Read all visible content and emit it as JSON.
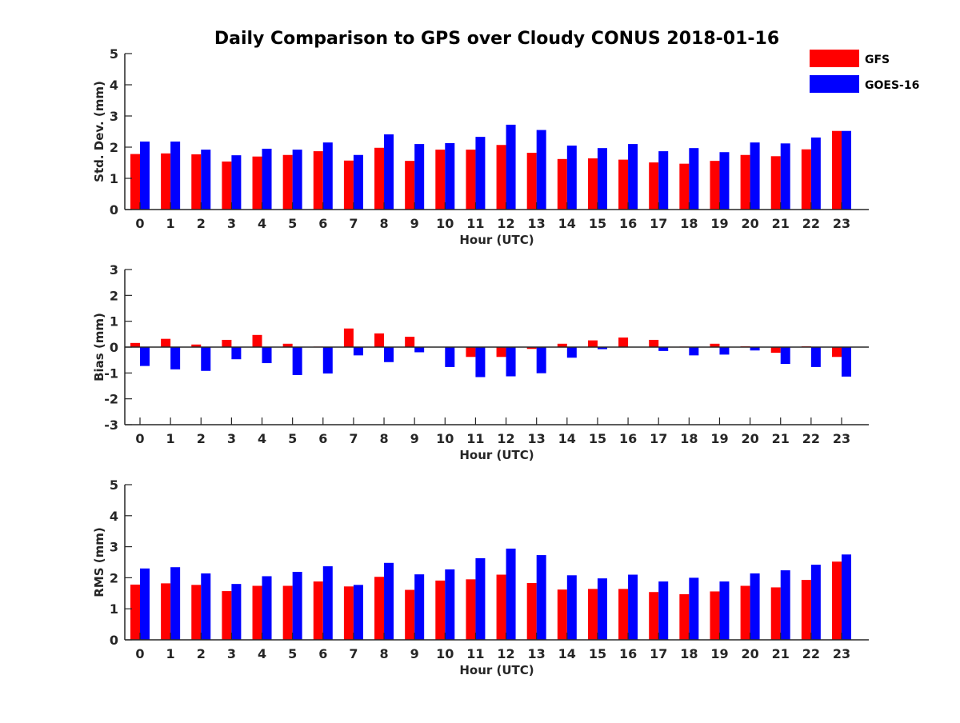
{
  "chart_data": {
    "type": "bar",
    "title": "Daily Comparison to GPS over Cloudy CONUS 2018-01-16",
    "categories": [
      "0",
      "1",
      "2",
      "3",
      "4",
      "5",
      "6",
      "7",
      "8",
      "9",
      "10",
      "11",
      "12",
      "13",
      "14",
      "15",
      "16",
      "17",
      "18",
      "19",
      "20",
      "21",
      "22",
      "23"
    ],
    "legend": {
      "placement": "top-right",
      "entries": [
        {
          "name": "GFS",
          "color": "#ff0000"
        },
        {
          "name": "GOES-16",
          "color": "#0000ff"
        }
      ]
    },
    "panels": [
      {
        "id": "stddev",
        "xlabel": "Hour (UTC)",
        "ylabel": "Std. Dev. (mm)",
        "ylim": [
          0,
          5
        ],
        "yticks": [
          "0",
          "1",
          "2",
          "3",
          "4",
          "5"
        ],
        "series": [
          {
            "name": "GFS",
            "color": "#ff0000",
            "values": [
              1.78,
              1.8,
              1.77,
              1.54,
              1.7,
              1.75,
              1.87,
              1.57,
              1.98,
              1.56,
              1.92,
              1.92,
              2.07,
              1.82,
              1.62,
              1.64,
              1.6,
              1.51,
              1.47,
              1.56,
              1.75,
              1.71,
              1.93,
              2.52
            ]
          },
          {
            "name": "GOES-16",
            "color": "#0000ff",
            "values": [
              2.18,
              2.18,
              1.92,
              1.74,
              1.95,
              1.92,
              2.15,
              1.75,
              2.41,
              2.1,
              2.13,
              2.33,
              2.72,
              2.55,
              2.05,
              1.97,
              2.1,
              1.87,
              1.97,
              1.84,
              2.15,
              2.12,
              2.31,
              2.52
            ]
          }
        ]
      },
      {
        "id": "bias",
        "xlabel": "Hour (UTC)",
        "ylabel": "Bias (mm)",
        "ylim": [
          -3,
          3
        ],
        "yticks": [
          "-3",
          "-2",
          "-1",
          "0",
          "1",
          "2",
          "3"
        ],
        "series": [
          {
            "name": "GFS",
            "color": "#ff0000",
            "values": [
              0.16,
              0.32,
              0.1,
              0.28,
              0.47,
              0.13,
              0.02,
              0.72,
              0.53,
              0.4,
              0.0,
              -0.38,
              -0.38,
              -0.07,
              0.13,
              0.26,
              0.37,
              0.28,
              0.02,
              0.13,
              0.03,
              -0.22,
              0.03,
              -0.38
            ]
          },
          {
            "name": "GOES-16",
            "color": "#0000ff",
            "values": [
              -0.73,
              -0.86,
              -0.92,
              -0.47,
              -0.62,
              -1.08,
              -1.02,
              -0.32,
              -0.58,
              -0.2,
              -0.77,
              -1.16,
              -1.13,
              -1.01,
              -0.41,
              -0.08,
              -0.01,
              -0.15,
              -0.32,
              -0.29,
              -0.13,
              -0.65,
              -0.77,
              -1.14
            ]
          }
        ]
      },
      {
        "id": "rms",
        "xlabel": "Hour (UTC)",
        "ylabel": "RMS (mm)",
        "ylim": [
          0,
          5
        ],
        "yticks": [
          "0",
          "1",
          "2",
          "3",
          "4",
          "5"
        ],
        "series": [
          {
            "name": "GFS",
            "color": "#ff0000",
            "values": [
              1.78,
              1.82,
              1.77,
              1.57,
              1.74,
              1.74,
              1.88,
              1.72,
              2.03,
              1.61,
              1.91,
              1.95,
              2.1,
              1.83,
              1.62,
              1.64,
              1.64,
              1.54,
              1.47,
              1.56,
              1.74,
              1.69,
              1.93,
              2.52
            ]
          },
          {
            "name": "GOES-16",
            "color": "#0000ff",
            "values": [
              2.3,
              2.34,
              2.14,
              1.8,
              2.05,
              2.19,
              2.37,
              1.77,
              2.48,
              2.11,
              2.27,
              2.63,
              2.94,
              2.73,
              2.08,
              1.98,
              2.1,
              1.88,
              2.0,
              1.88,
              2.14,
              2.24,
              2.42,
              2.75
            ]
          }
        ]
      }
    ]
  }
}
